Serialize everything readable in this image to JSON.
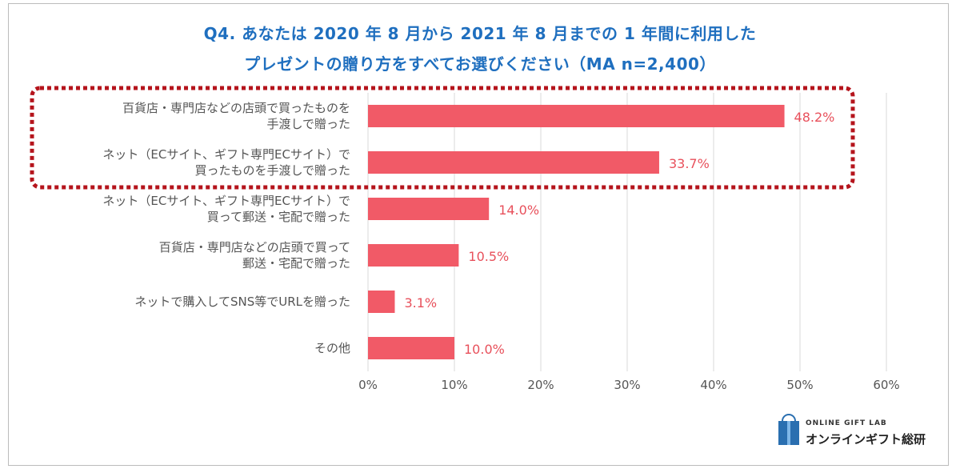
{
  "title_line1": "Q4. あなたは 2020 年 8 月から 2021 年 8 月までの 1 年間に利用した",
  "title_line2": "プレゼントの贈り方をすべてお選びください（MA n=2,400）",
  "chart_data": {
    "type": "bar",
    "orientation": "horizontal",
    "categories": [
      [
        "百貨店・専門店などの店頭で買ったものを",
        "手渡しで贈った"
      ],
      [
        "ネット（ECサイト、ギフト専門ECサイト）で",
        "買ったものを手渡しで贈った"
      ],
      [
        "ネット（ECサイト、ギフト専門ECサイト）で",
        "買って郵送・宅配で贈った"
      ],
      [
        "百貨店・専門店などの店頭で買って",
        "郵送・宅配で贈った"
      ],
      [
        "ネットで購入してSNS等でURLを贈った"
      ],
      [
        "その他"
      ]
    ],
    "values": [
      48.2,
      33.7,
      14.0,
      10.5,
      3.1,
      10.0
    ],
    "value_labels": [
      "48.2%",
      "33.7%",
      "14.0%",
      "10.5%",
      "3.1%",
      "10.0%"
    ],
    "x_ticks": [
      "0%",
      "10%",
      "20%",
      "30%",
      "40%",
      "50%",
      "60%"
    ],
    "xlim": [
      0,
      60
    ],
    "grid": true,
    "bar_color": "#f15a67",
    "label_color": "#e8505b",
    "highlighted_categories": [
      0,
      1
    ],
    "highlight_color": "#b5141c"
  },
  "brand": {
    "en": "ONLINE GIFT LAB",
    "jp": "オンラインギフト総研"
  }
}
